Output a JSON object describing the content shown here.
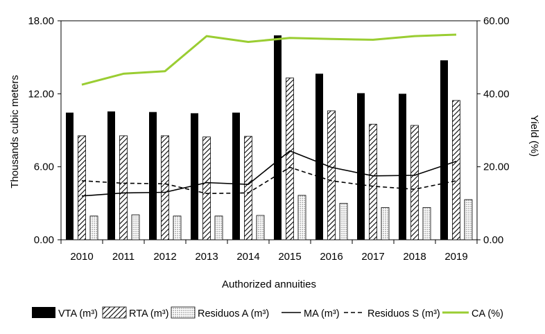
{
  "chart_data": {
    "type": "bar",
    "categories": [
      "2010",
      "2011",
      "2012",
      "2013",
      "2014",
      "2015",
      "2016",
      "2017",
      "2018",
      "2019"
    ],
    "xlabel": "Authorized annuities",
    "ylabel": "Thousands cubic meters",
    "y2label": "Yield (%)",
    "ylim": [
      0,
      18
    ],
    "y2lim": [
      0,
      60
    ],
    "yticks": [
      "0.00",
      "6.00",
      "12.00",
      "18.00"
    ],
    "y2ticks": [
      "0.00",
      "20.00",
      "40.00",
      "60.00"
    ],
    "legend_position": "bottom",
    "series": [
      {
        "name": "VTA (m³)",
        "type": "bar",
        "style": "solid-black",
        "axis": "left",
        "values": [
          10.45,
          10.55,
          10.5,
          10.4,
          10.45,
          16.8,
          13.65,
          12.05,
          12.0,
          14.75
        ]
      },
      {
        "name": "RTA (m³)",
        "type": "bar",
        "style": "diagonal-hatch",
        "axis": "left",
        "values": [
          8.55,
          8.55,
          8.55,
          8.45,
          8.5,
          13.3,
          10.6,
          9.5,
          9.4,
          11.45
        ]
      },
      {
        "name": "Residuos A (m³)",
        "type": "bar",
        "style": "dotted",
        "axis": "left",
        "values": [
          1.95,
          2.05,
          1.95,
          1.95,
          2.0,
          3.65,
          3.0,
          2.65,
          2.65,
          3.3
        ]
      },
      {
        "name": "MA (m³)",
        "type": "line",
        "style": "solid",
        "color": "#000000",
        "axis": "left",
        "values": [
          3.6,
          3.85,
          3.9,
          4.7,
          4.55,
          7.3,
          5.95,
          5.25,
          5.3,
          6.45
        ]
      },
      {
        "name": "Residuos S (m³)",
        "type": "line",
        "style": "dashed",
        "color": "#000000",
        "axis": "left",
        "values": [
          4.85,
          4.65,
          4.6,
          3.8,
          3.85,
          5.95,
          4.85,
          4.4,
          4.15,
          4.85
        ]
      },
      {
        "name": "CA (%)",
        "type": "line",
        "style": "solid",
        "color": "#9ACD32",
        "axis": "right",
        "values": [
          42.5,
          45.5,
          46.2,
          55.8,
          54.2,
          55.3,
          55.0,
          54.8,
          55.8,
          56.2
        ]
      }
    ]
  }
}
